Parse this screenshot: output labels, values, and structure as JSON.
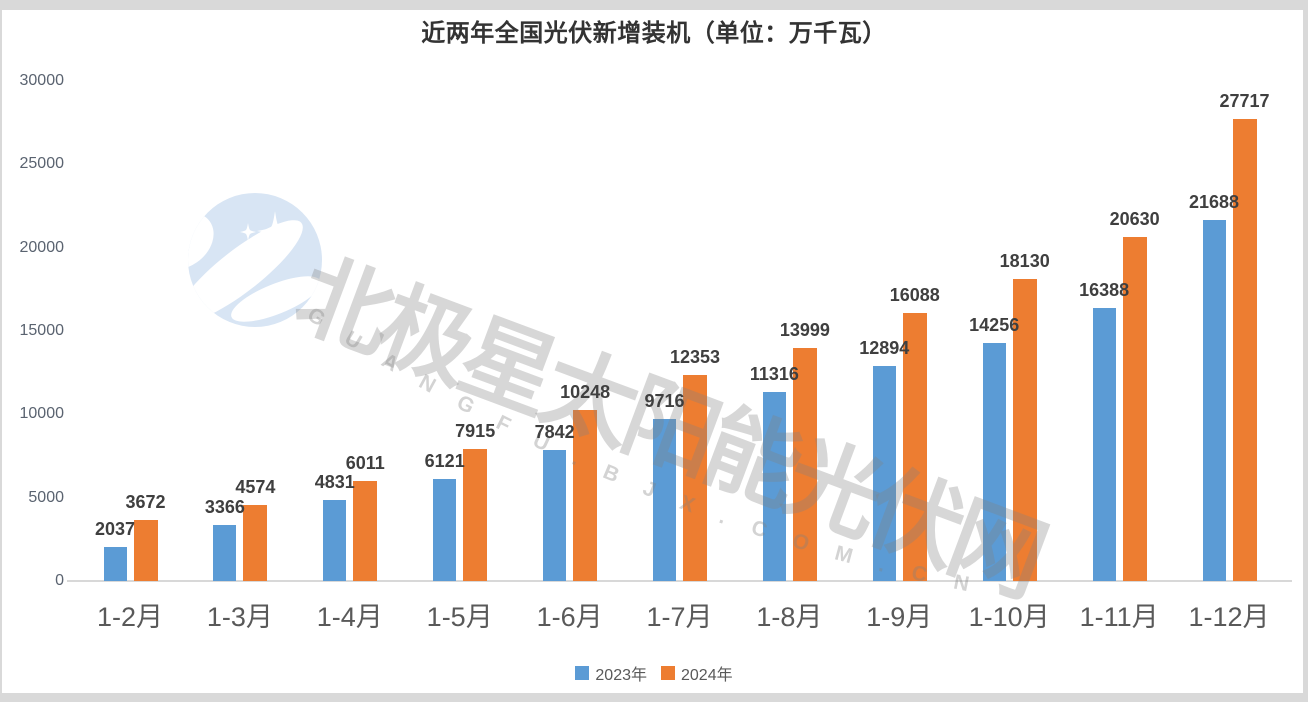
{
  "title": "近两年全国光伏新增装机（单位：万千瓦）",
  "watermark": {
    "logo_name": "bjx-polar-star-logo",
    "brand_text": "北极星太阳能光伏网",
    "domain_text": "GUANGFU.BJX.COM.CN"
  },
  "chart_data": {
    "type": "bar",
    "title": "近两年全国光伏新增装机（单位：万千瓦）",
    "unit": "万千瓦",
    "categories": [
      "1-2月",
      "1-3月",
      "1-4月",
      "1-5月",
      "1-6月",
      "1-7月",
      "1-8月",
      "1-9月",
      "1-10月",
      "1-11月",
      "1-12月"
    ],
    "series": [
      {
        "name": "2023年",
        "color": "#5B9BD5",
        "values": [
          2037,
          3366,
          4831,
          6121,
          7842,
          9716,
          11316,
          12894,
          14256,
          16388,
          21688
        ]
      },
      {
        "name": "2024年",
        "color": "#ED7D31",
        "values": [
          3672,
          4574,
          6011,
          7915,
          10248,
          12353,
          13999,
          16088,
          18130,
          20630,
          27717
        ]
      }
    ],
    "ylim": [
      0,
      30000
    ],
    "yticks": [
      0,
      5000,
      10000,
      15000,
      20000,
      25000,
      30000
    ],
    "grid": false,
    "value_labels": true,
    "legend_position": "bottom"
  }
}
